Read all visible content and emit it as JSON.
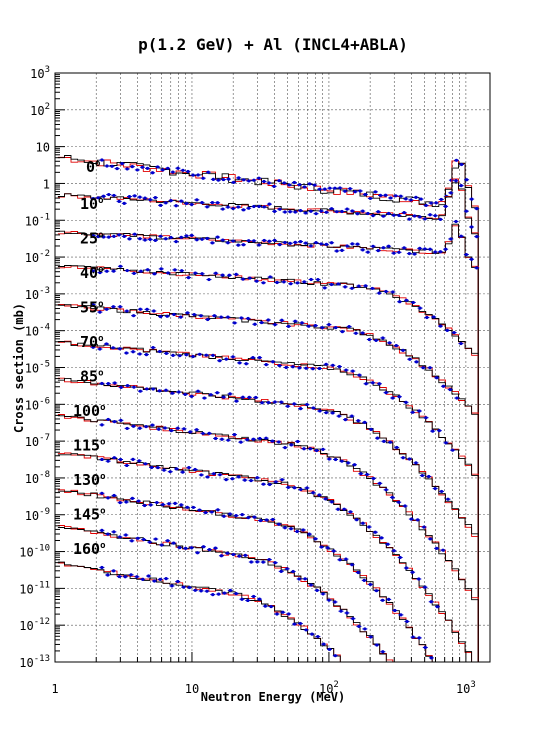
{
  "chart_data": {
    "type": "line",
    "title": "p(1.2 GeV) + Al (INCL4+ABLA)",
    "xlabel": "Neutron Energy (MeV)",
    "ylabel": "Cross section (mb)",
    "x_scale": "log",
    "y_scale": "log",
    "xlim": [
      1,
      1500
    ],
    "ylim": [
      1e-13,
      1000
    ],
    "grid": true,
    "x_ticks": [
      {
        "base": "1",
        "exp": ""
      },
      {
        "base": "10",
        "exp": ""
      },
      {
        "base": "10",
        "exp": "2"
      },
      {
        "base": "10",
        "exp": "3"
      }
    ],
    "y_ticks": [
      {
        "base": "10",
        "exp": "-13"
      },
      {
        "base": "10",
        "exp": "-12"
      },
      {
        "base": "10",
        "exp": "-11"
      },
      {
        "base": "10",
        "exp": "-10"
      },
      {
        "base": "10",
        "exp": "-9"
      },
      {
        "base": "10",
        "exp": "-8"
      },
      {
        "base": "10",
        "exp": "-7"
      },
      {
        "base": "10",
        "exp": "-6"
      },
      {
        "base": "10",
        "exp": "-5"
      },
      {
        "base": "10",
        "exp": "-4"
      },
      {
        "base": "10",
        "exp": "-3"
      },
      {
        "base": "10",
        "exp": "-2"
      },
      {
        "base": "10",
        "exp": "-1"
      },
      {
        "base": "1",
        "exp": ""
      },
      {
        "base": "10",
        "exp": ""
      },
      {
        "base": "10",
        "exp": "2"
      },
      {
        "base": "10",
        "exp": "3"
      }
    ],
    "series_colors": {
      "model_black": "#000000",
      "model_red": "#e00000",
      "data": "#0000cc"
    },
    "angles": [
      {
        "label": "0",
        "deg": "o",
        "start": 6
      },
      {
        "label": "10",
        "deg": "o",
        "start": 0.55
      },
      {
        "label": "25",
        "deg": "o",
        "start": 0.05
      },
      {
        "label": "40",
        "deg": "o",
        "start": 0.006
      },
      {
        "label": "55",
        "deg": "o",
        "start": 0.0005
      },
      {
        "label": "70",
        "deg": "o",
        "start": 5e-05
      },
      {
        "label": "85",
        "deg": "o",
        "start": 5e-06
      },
      {
        "label": "100",
        "deg": "o",
        "start": 5e-07
      },
      {
        "label": "115",
        "deg": "o",
        "start": 5e-08
      },
      {
        "label": "130",
        "deg": "o",
        "start": 5e-09
      },
      {
        "label": "145",
        "deg": "o",
        "start": 5e-10
      },
      {
        "label": "160",
        "deg": "o",
        "start": 5e-11
      }
    ]
  }
}
